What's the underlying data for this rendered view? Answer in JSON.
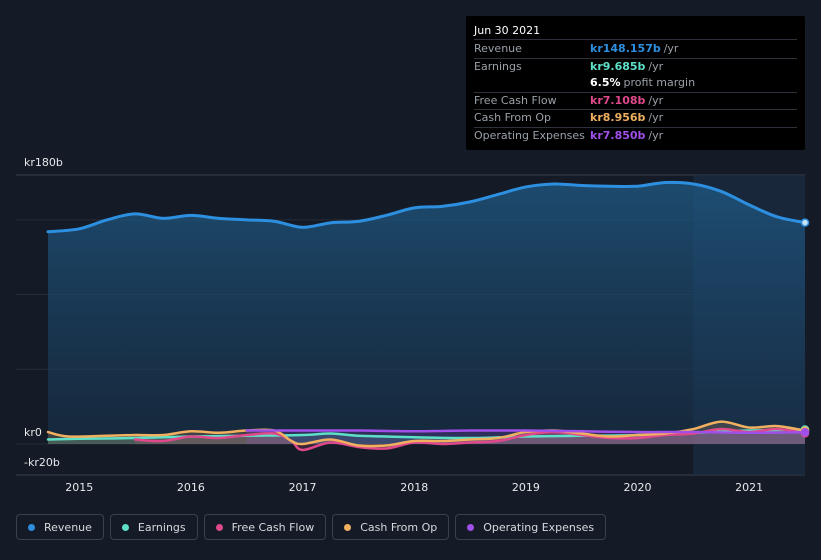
{
  "tooltip": {
    "date": "Jun 30 2021",
    "rows": [
      {
        "label": "Revenue",
        "value": "kr148.157b",
        "unit": "/yr",
        "color": "#2d8fe0"
      },
      {
        "label": "Earnings",
        "value": "kr9.685b",
        "unit": "/yr",
        "color": "#5ee0c8"
      },
      {
        "label": "",
        "value": "6.5%",
        "unit": "profit margin",
        "color": "#ffffff"
      },
      {
        "label": "Free Cash Flow",
        "value": "kr7.108b",
        "unit": "/yr",
        "color": "#e0488c"
      },
      {
        "label": "Cash From Op",
        "value": "kr8.956b",
        "unit": "/yr",
        "color": "#f0b060"
      },
      {
        "label": "Operating Expenses",
        "value": "kr7.850b",
        "unit": "/yr",
        "color": "#a050e8"
      }
    ]
  },
  "legend": [
    {
      "label": "Revenue",
      "color": "#2d8fe0"
    },
    {
      "label": "Earnings",
      "color": "#5ee0c8"
    },
    {
      "label": "Free Cash Flow",
      "color": "#e0488c"
    },
    {
      "label": "Cash From Op",
      "color": "#f0b060"
    },
    {
      "label": "Operating Expenses",
      "color": "#a050e8"
    }
  ],
  "chart_data": {
    "type": "area",
    "y_tick_labels": [
      "kr180b",
      "kr0",
      "-kr20b"
    ],
    "ylim": [
      -20,
      180
    ],
    "xlim": [
      2014.72,
      2021.5
    ],
    "x_tick_labels": [
      "2015",
      "2016",
      "2017",
      "2018",
      "2019",
      "2020",
      "2021"
    ],
    "x_ticks": [
      2015,
      2016,
      2017,
      2018,
      2019,
      2020,
      2021
    ],
    "grid": true,
    "highlight_start": 2020.5,
    "series": [
      {
        "name": "Revenue",
        "color": "#2d8fe0",
        "points": [
          [
            2014.72,
            142
          ],
          [
            2015.0,
            144
          ],
          [
            2015.25,
            150
          ],
          [
            2015.5,
            154
          ],
          [
            2015.75,
            151
          ],
          [
            2016.0,
            153
          ],
          [
            2016.25,
            151
          ],
          [
            2016.5,
            150
          ],
          [
            2016.75,
            149
          ],
          [
            2017.0,
            145
          ],
          [
            2017.25,
            148
          ],
          [
            2017.5,
            149
          ],
          [
            2017.75,
            153
          ],
          [
            2018.0,
            158
          ],
          [
            2018.25,
            159
          ],
          [
            2018.5,
            162
          ],
          [
            2018.75,
            167
          ],
          [
            2019.0,
            172
          ],
          [
            2019.25,
            174
          ],
          [
            2019.5,
            173
          ],
          [
            2019.75,
            172.5
          ],
          [
            2020.0,
            172.5
          ],
          [
            2020.25,
            175
          ],
          [
            2020.5,
            174
          ],
          [
            2020.75,
            169
          ],
          [
            2021.0,
            160
          ],
          [
            2021.25,
            152
          ],
          [
            2021.5,
            148.157
          ]
        ]
      },
      {
        "name": "Earnings",
        "color": "#5ee0c8",
        "points": [
          [
            2014.72,
            3
          ],
          [
            2015.0,
            3.5
          ],
          [
            2015.5,
            4
          ],
          [
            2016.0,
            5
          ],
          [
            2016.5,
            5.5
          ],
          [
            2017.0,
            6
          ],
          [
            2017.25,
            7
          ],
          [
            2017.5,
            5.5
          ],
          [
            2017.75,
            5
          ],
          [
            2018.0,
            4.5
          ],
          [
            2018.5,
            4
          ],
          [
            2019.0,
            5
          ],
          [
            2019.5,
            5.5
          ],
          [
            2020.0,
            6
          ],
          [
            2020.5,
            7.5
          ],
          [
            2021.0,
            9
          ],
          [
            2021.5,
            9.685
          ]
        ]
      },
      {
        "name": "Free Cash Flow",
        "color": "#e0488c",
        "points": [
          [
            2015.5,
            3
          ],
          [
            2015.75,
            2
          ],
          [
            2016.0,
            5
          ],
          [
            2016.25,
            4
          ],
          [
            2016.5,
            6
          ],
          [
            2016.75,
            7
          ],
          [
            2016.9,
            2
          ],
          [
            2017.0,
            -4
          ],
          [
            2017.25,
            1
          ],
          [
            2017.5,
            -2
          ],
          [
            2017.75,
            -3
          ],
          [
            2018.0,
            1
          ],
          [
            2018.25,
            0
          ],
          [
            2018.5,
            1
          ],
          [
            2018.75,
            2
          ],
          [
            2019.0,
            6
          ],
          [
            2019.25,
            8
          ],
          [
            2019.5,
            6
          ],
          [
            2019.75,
            4
          ],
          [
            2020.0,
            4
          ],
          [
            2020.25,
            6
          ],
          [
            2020.5,
            7
          ],
          [
            2020.75,
            10
          ],
          [
            2021.0,
            8
          ],
          [
            2021.25,
            10
          ],
          [
            2021.5,
            7.108
          ]
        ]
      },
      {
        "name": "Cash From Op",
        "color": "#f0b060",
        "points": [
          [
            2014.72,
            8
          ],
          [
            2014.9,
            5
          ],
          [
            2015.25,
            5.5
          ],
          [
            2015.5,
            6
          ],
          [
            2015.75,
            6
          ],
          [
            2016.0,
            8.5
          ],
          [
            2016.25,
            7.5
          ],
          [
            2016.5,
            9
          ],
          [
            2016.75,
            9
          ],
          [
            2016.9,
            2
          ],
          [
            2017.0,
            0
          ],
          [
            2017.25,
            3
          ],
          [
            2017.5,
            -1
          ],
          [
            2017.75,
            -1
          ],
          [
            2018.0,
            2
          ],
          [
            2018.25,
            2
          ],
          [
            2018.5,
            3
          ],
          [
            2018.75,
            4
          ],
          [
            2019.0,
            8
          ],
          [
            2019.25,
            9
          ],
          [
            2019.5,
            7
          ],
          [
            2019.75,
            5
          ],
          [
            2020.0,
            6
          ],
          [
            2020.25,
            7
          ],
          [
            2020.5,
            10
          ],
          [
            2020.75,
            15
          ],
          [
            2021.0,
            11
          ],
          [
            2021.25,
            12
          ],
          [
            2021.5,
            8.956
          ]
        ]
      },
      {
        "name": "Operating Expenses",
        "color": "#a050e8",
        "points": [
          [
            2016.5,
            9
          ],
          [
            2017.0,
            9
          ],
          [
            2017.5,
            9
          ],
          [
            2018.0,
            8.5
          ],
          [
            2018.5,
            9
          ],
          [
            2019.0,
            9
          ],
          [
            2019.5,
            8.5
          ],
          [
            2020.0,
            8
          ],
          [
            2020.5,
            8
          ],
          [
            2021.0,
            7.5
          ],
          [
            2021.5,
            7.85
          ]
        ]
      }
    ]
  }
}
